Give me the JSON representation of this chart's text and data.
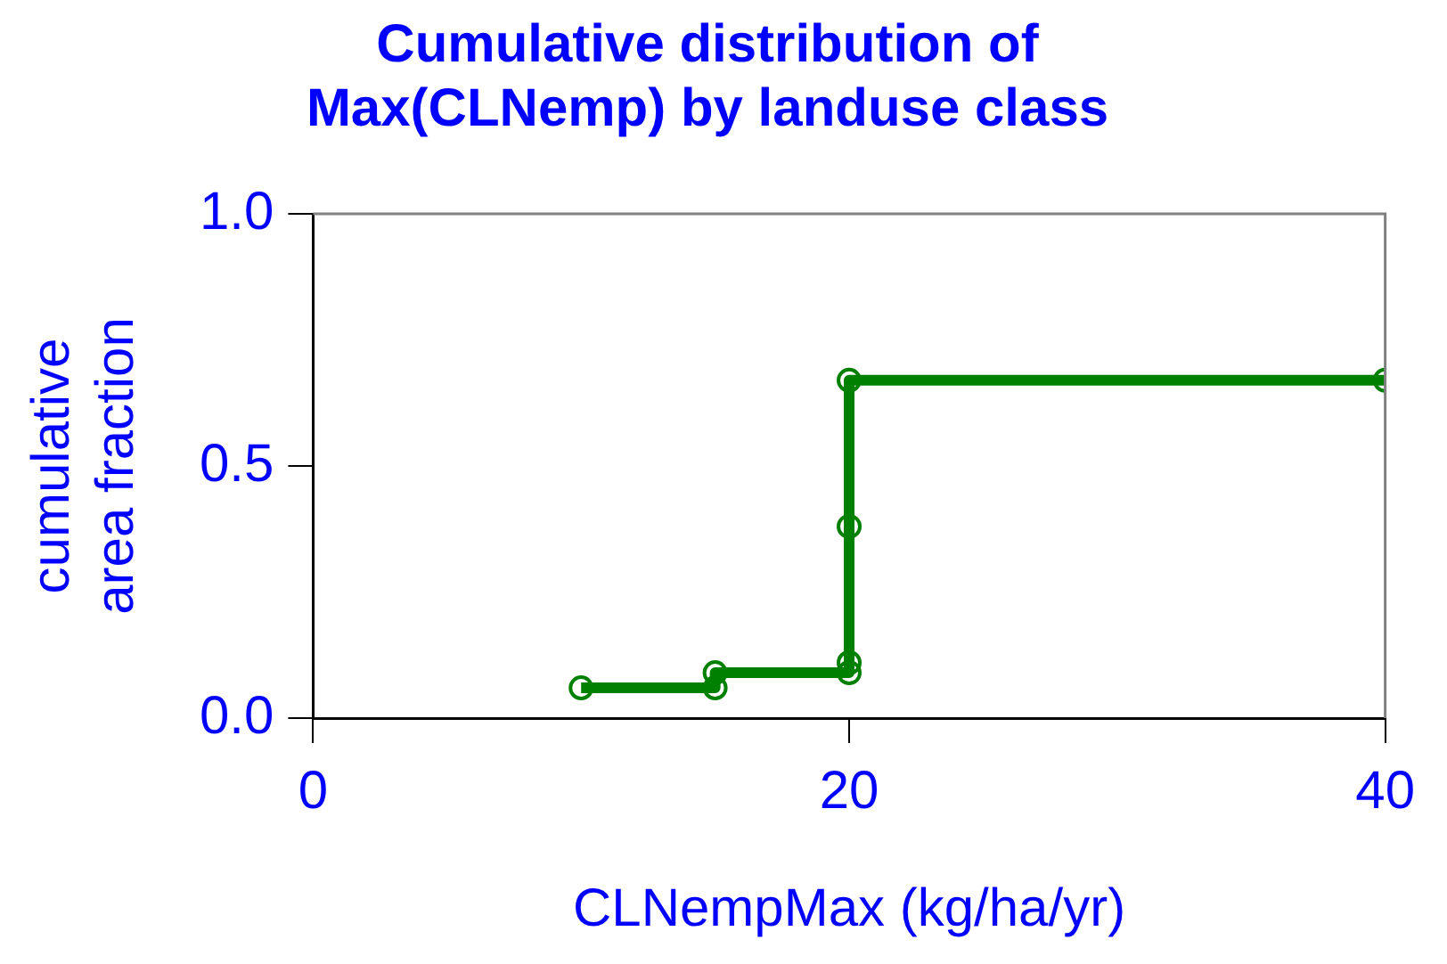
{
  "chart_data": {
    "type": "line",
    "title": "Cumulative distribution of Max(CLNemp) by landuse class",
    "xlabel": "CLNempMax (kg/ha/yr)",
    "ylabel": "cumulative area fraction",
    "x": [
      10,
      15,
      15,
      20,
      20,
      20,
      20,
      40
    ],
    "series": [
      {
        "color": "#008000",
        "values": [
          0.06,
          0.06,
          0.09,
          0.09,
          0.11,
          0.38,
          0.67,
          0.67
        ]
      }
    ],
    "xlim": [
      0,
      40
    ],
    "xticks": [
      0,
      20,
      40
    ],
    "ylim": [
      0,
      1
    ],
    "yticks": [
      {
        "value": 0,
        "label": "0.0"
      },
      {
        "value": 0.5,
        "label": "0.5"
      },
      {
        "value": 1,
        "label": "1.0"
      }
    ],
    "grid": false,
    "legend": false,
    "marker": "circle",
    "line_style": "solid"
  }
}
